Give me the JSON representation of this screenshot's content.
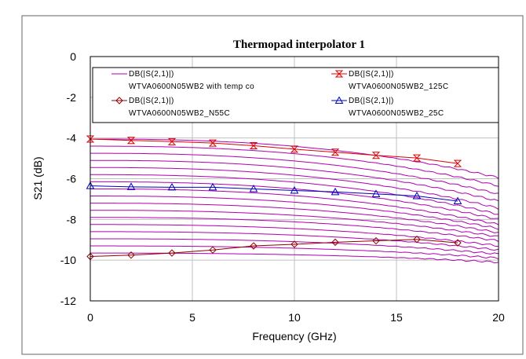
{
  "chart_data": {
    "type": "line",
    "title": "Thermopad interpolator 1",
    "xlabel": "Frequency (GHz)",
    "ylabel": "S21 (dB)",
    "xlim": [
      0,
      20
    ],
    "ylim": [
      -12,
      0
    ],
    "xticks": [
      "0",
      "5",
      "10",
      "15",
      "20"
    ],
    "yticks": [
      "0",
      "-2",
      "-4",
      "-6",
      "-8",
      "-10",
      "-12"
    ],
    "grid": true,
    "legend_position": "top",
    "legend": [
      {
        "line1": "DB(|S(2,1)|)",
        "line2": "WTVA0600N05WB2 with temp co",
        "marker": "line",
        "color": "#b000b0"
      },
      {
        "line1": "DB(|S(2,1)|)",
        "line2": "WTVA0600N05WB2_125C",
        "marker": "hourglass",
        "color": "#e00000"
      },
      {
        "line1": "DB(|S(2,1)|)",
        "line2": "WTVA0600N05WB2_N55C",
        "marker": "diamond",
        "color": "#900000"
      },
      {
        "line1": "DB(|S(2,1)|)",
        "line2": "WTVA0600N05WB2_25C",
        "marker": "triangle",
        "color": "#0000c0"
      }
    ],
    "temp_co_family": {
      "name": "DB(|S(2,1)|) WTVA0600N05WB2 with temp co",
      "color": "#b000b0",
      "start_values_dB": [
        -4.05,
        -4.4,
        -4.75,
        -5.1,
        -5.45,
        -5.8,
        -6.15,
        -6.5,
        -6.85,
        -7.2,
        -7.55,
        -7.9,
        -8.25,
        -8.6,
        -8.95,
        -9.3,
        -9.65
      ],
      "end_values_dB": [
        -5.95,
        -6.35,
        -6.75,
        -7.1,
        -7.45,
        -7.75,
        -8.0,
        -8.25,
        -8.45,
        -8.65,
        -8.85,
        -9.05,
        -9.3,
        -9.5,
        -9.7,
        -9.9,
        -10.1
      ]
    },
    "series": [
      {
        "name": "DB(|S(2,1)|) WTVA0600N05WB2_125C",
        "marker": "hourglass",
        "color": "#e00000",
        "x": [
          0,
          2,
          4,
          6,
          8,
          10,
          12,
          14,
          16,
          18
        ],
        "y": [
          -4.05,
          -4.12,
          -4.18,
          -4.25,
          -4.38,
          -4.55,
          -4.7,
          -4.85,
          -4.98,
          -5.25
        ]
      },
      {
        "name": "DB(|S(2,1)|) WTVA0600N05WB2_25C",
        "marker": "triangle",
        "color": "#0000c0",
        "x": [
          0,
          2,
          4,
          6,
          8,
          10,
          12,
          14,
          16,
          18
        ],
        "y": [
          -6.35,
          -6.4,
          -6.42,
          -6.42,
          -6.5,
          -6.58,
          -6.65,
          -6.75,
          -6.85,
          -7.1
        ]
      },
      {
        "name": "DB(|S(2,1)|) WTVA0600N05WB2_N55C",
        "marker": "diamond",
        "color": "#900000",
        "x": [
          0,
          2,
          4,
          6,
          8,
          10,
          12,
          14,
          16,
          18
        ],
        "y": [
          -9.82,
          -9.75,
          -9.65,
          -9.5,
          -9.3,
          -9.22,
          -9.12,
          -9.05,
          -8.98,
          -9.15
        ]
      }
    ]
  }
}
